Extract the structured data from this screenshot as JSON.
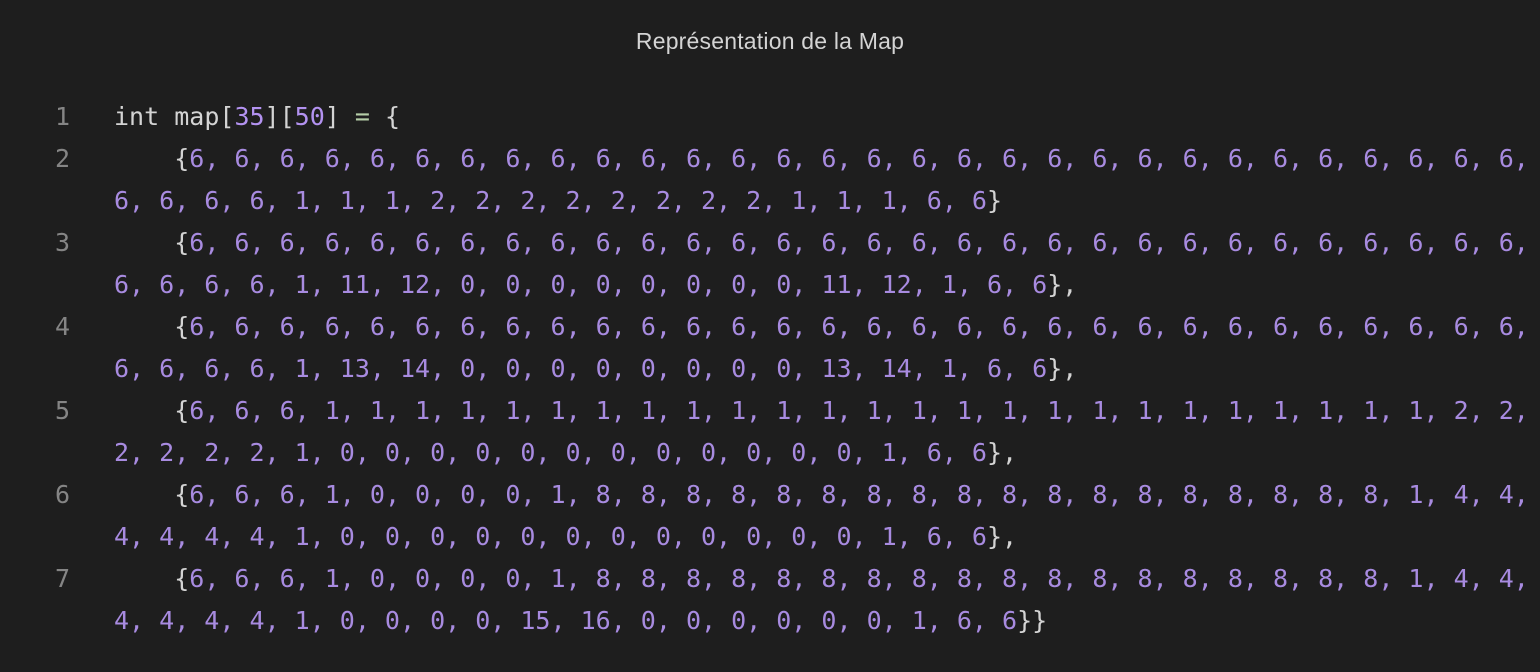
{
  "title": "Représentation de la Map",
  "code": {
    "declaration": {
      "type": "int",
      "name": "map",
      "dim1": "35",
      "dim2": "50",
      "assign": "=",
      "open": "{"
    },
    "lines": [
      {
        "number": "1"
      },
      {
        "number": "2",
        "text": "6, 6, 6, 6, 6, 6, 6, 6, 6, 6, 6, 6, 6, 6, 6, 6, 6, 6, 6, 6, 6, 6, 6, 6, 6, 6, 6, 6, 6, 6, 6, 6, 6, 6, 1, 1, 1, 2, 2, 2, 2, 2, 2, 2, 2, 1, 1, 1, 6, 6",
        "close": "}"
      },
      {
        "number": "3",
        "text": "6, 6, 6, 6, 6, 6, 6, 6, 6, 6, 6, 6, 6, 6, 6, 6, 6, 6, 6, 6, 6, 6, 6, 6, 6, 6, 6, 6, 6, 6, 6, 6, 6, 6, 1, 11, 12, 0, 0, 0, 0, 0, 0, 0, 0, 11, 12, 1, 6, 6",
        "close": "},"
      },
      {
        "number": "4",
        "text": "6, 6, 6, 6, 6, 6, 6, 6, 6, 6, 6, 6, 6, 6, 6, 6, 6, 6, 6, 6, 6, 6, 6, 6, 6, 6, 6, 6, 6, 6, 6, 6, 6, 6, 1, 13, 14, 0, 0, 0, 0, 0, 0, 0, 0, 13, 14, 1, 6, 6",
        "close": "},"
      },
      {
        "number": "5",
        "text": "6, 6, 6, 1, 1, 1, 1, 1, 1, 1, 1, 1, 1, 1, 1, 1, 1, 1, 1, 1, 1, 1, 1, 1, 1, 1, 1, 1, 2, 2, 2, 2, 2, 2, 1, 0, 0, 0, 0, 0, 0, 0, 0, 0, 0, 0, 0, 1, 6, 6",
        "close": "},"
      },
      {
        "number": "6",
        "text": "6, 6, 6, 1, 0, 0, 0, 0, 1, 8, 8, 8, 8, 8, 8, 8, 8, 8, 8, 8, 8, 8, 8, 8, 8, 8, 8, 1, 4, 4, 4, 4, 4, 4, 1, 0, 0, 0, 0, 0, 0, 0, 0, 0, 0, 0, 0, 1, 6, 6",
        "close": "},"
      },
      {
        "number": "7",
        "text": "6, 6, 6, 1, 0, 0, 0, 0, 1, 8, 8, 8, 8, 8, 8, 8, 8, 8, 8, 8, 8, 8, 8, 8, 8, 8, 8, 1, 4, 4, 4, 4, 4, 4, 1, 0, 0, 0, 0, 15, 16, 0, 0, 0, 0, 0, 0, 1, 6, 6",
        "close": "}}"
      }
    ]
  },
  "colors": {
    "background": "#1e1e1e",
    "number": "#b392f0",
    "text": "#d4d4d4",
    "line_number": "#858585",
    "operator": "#b5cea8"
  }
}
